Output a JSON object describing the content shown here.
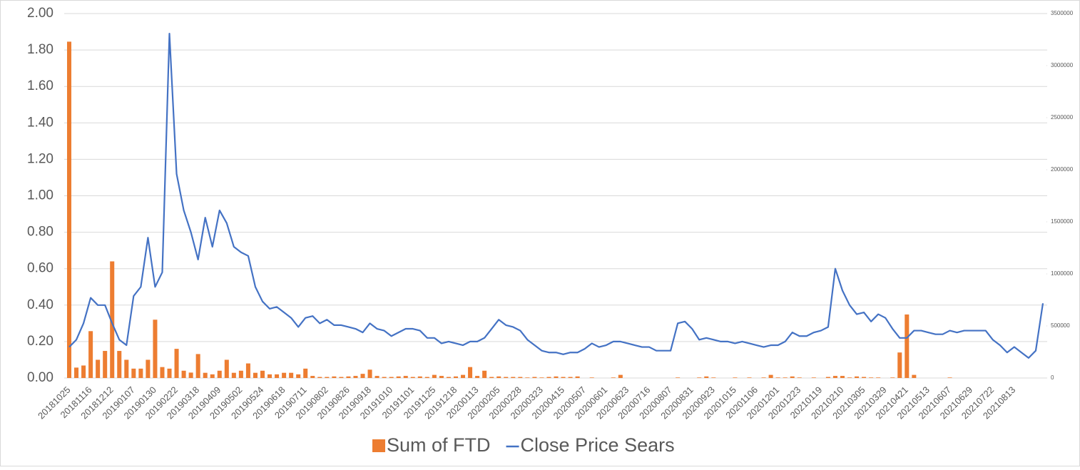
{
  "chart_data": {
    "type": "combo",
    "categories": [
      "20181025",
      null,
      null,
      "20181116",
      null,
      null,
      "20181212",
      null,
      null,
      "20190107",
      null,
      null,
      "20190130",
      null,
      null,
      "20190222",
      null,
      null,
      "20190318",
      null,
      null,
      "20190409",
      null,
      null,
      "20190502",
      null,
      null,
      "20190524",
      null,
      null,
      "20190618",
      null,
      null,
      "20190711",
      null,
      null,
      "20190802",
      null,
      null,
      "20190826",
      null,
      null,
      "20190918",
      null,
      null,
      "20191010",
      null,
      null,
      "20191101",
      null,
      null,
      "20191125",
      null,
      null,
      "20191218",
      null,
      null,
      "20200113",
      null,
      null,
      "20200205",
      null,
      null,
      "20200228",
      null,
      null,
      "20200323",
      null,
      null,
      "20200415",
      null,
      null,
      "20200507",
      null,
      null,
      "20200601",
      null,
      null,
      "20200623",
      null,
      null,
      "20200716",
      null,
      null,
      "20200807",
      null,
      null,
      "20200831",
      null,
      null,
      "20200923",
      null,
      null,
      "20201015",
      null,
      null,
      "20201106",
      null,
      null,
      "20201201",
      null,
      null,
      "20201223",
      null,
      null,
      "20210119",
      null,
      null,
      "20210210",
      null,
      null,
      "20210305",
      null,
      null,
      "20210329",
      null,
      null,
      "20210421",
      null,
      null,
      "20210513",
      null,
      null,
      "20210607",
      null,
      null,
      "20210629",
      null,
      null,
      "20210722",
      null,
      null,
      "20210813",
      null,
      null,
      null,
      null
    ],
    "series": [
      {
        "name": "Sum of FTD",
        "type": "bar",
        "axis": "y2",
        "color": "#ed7d31",
        "values": [
          3230000,
          100000,
          120000,
          450000,
          175000,
          260000,
          1120000,
          260000,
          175000,
          90000,
          90000,
          175000,
          560000,
          105000,
          90000,
          280000,
          70000,
          52000,
          230000,
          50000,
          35000,
          70000,
          175000,
          50000,
          70000,
          140000,
          50000,
          70000,
          35000,
          35000,
          50000,
          50000,
          35000,
          90000,
          20000,
          10000,
          10000,
          15000,
          10000,
          15000,
          20000,
          40000,
          80000,
          20000,
          10000,
          10000,
          15000,
          20000,
          10000,
          15000,
          10000,
          30000,
          20000,
          10000,
          15000,
          30000,
          105000,
          20000,
          70000,
          10000,
          15000,
          10000,
          10000,
          10000,
          5000,
          10000,
          5000,
          10000,
          15000,
          10000,
          10000,
          15000,
          0,
          5000,
          0,
          0,
          5000,
          30000,
          0,
          0,
          0,
          0,
          0,
          0,
          0,
          5000,
          0,
          0,
          5000,
          15000,
          5000,
          0,
          0,
          5000,
          0,
          5000,
          0,
          5000,
          30000,
          5000,
          5000,
          15000,
          5000,
          0,
          5000,
          0,
          10000,
          20000,
          20000,
          5000,
          15000,
          10000,
          5000,
          5000,
          0,
          5000,
          245000,
          610000,
          30000,
          0,
          0,
          0,
          0,
          5000,
          0,
          0,
          0,
          0,
          0,
          0,
          0,
          0,
          0,
          0,
          0,
          0,
          0
        ]
      },
      {
        "name": "Close Price Sears",
        "type": "line",
        "color": "#4472c4",
        "values": [
          0.17,
          0.21,
          0.3,
          0.44,
          0.4,
          0.4,
          0.3,
          0.21,
          0.18,
          0.45,
          0.5,
          0.77,
          0.5,
          0.58,
          1.89,
          1.12,
          0.92,
          0.8,
          0.65,
          0.88,
          0.72,
          0.92,
          0.85,
          0.72,
          0.69,
          0.67,
          0.5,
          0.42,
          0.38,
          0.39,
          0.36,
          0.33,
          0.28,
          0.33,
          0.34,
          0.3,
          0.32,
          0.29,
          0.29,
          0.28,
          0.27,
          0.25,
          0.3,
          0.27,
          0.26,
          0.23,
          0.25,
          0.27,
          0.27,
          0.26,
          0.22,
          0.22,
          0.19,
          0.2,
          0.19,
          0.18,
          0.2,
          0.2,
          0.22,
          0.27,
          0.32,
          0.29,
          0.28,
          0.26,
          0.21,
          0.18,
          0.15,
          0.14,
          0.14,
          0.13,
          0.14,
          0.14,
          0.16,
          0.19,
          0.17,
          0.18,
          0.2,
          0.2,
          0.19,
          0.18,
          0.17,
          0.17,
          0.15,
          0.15,
          0.15,
          0.3,
          0.31,
          0.27,
          0.21,
          0.22,
          0.21,
          0.2,
          0.2,
          0.19,
          0.2,
          0.19,
          0.18,
          0.17,
          0.18,
          0.18,
          0.2,
          0.25,
          0.23,
          0.23,
          0.25,
          0.26,
          0.28,
          0.6,
          0.48,
          0.4,
          0.35,
          0.36,
          0.31,
          0.35,
          0.33,
          0.27,
          0.22,
          0.22,
          0.26,
          0.26,
          0.25,
          0.24,
          0.24,
          0.26,
          0.25,
          0.26,
          0.26,
          0.26,
          0.26,
          0.21,
          0.18,
          0.14,
          0.17,
          0.14,
          0.11,
          0.15,
          0.41
        ]
      }
    ],
    "ylim": [
      0,
      2
    ],
    "yticks": [
      {
        "value": 0,
        "label": "0.00"
      },
      {
        "value": 0.2,
        "label": "0.20"
      },
      {
        "value": 0.4,
        "label": "0.40"
      },
      {
        "value": 0.6,
        "label": "0.60"
      },
      {
        "value": 0.8,
        "label": "0.80"
      },
      {
        "value": 1,
        "label": "1.00"
      },
      {
        "value": 1.2,
        "label": "1.20"
      },
      {
        "value": 1.4,
        "label": "1.40"
      },
      {
        "value": 1.6,
        "label": "1.60"
      },
      {
        "value": 1.8,
        "label": "1.80"
      },
      {
        "value": 2,
        "label": "2.00"
      }
    ],
    "y2lim": [
      0,
      3500000
    ],
    "y2ticks": [
      0,
      500000,
      1000000,
      1500000,
      2000000,
      2500000,
      3000000,
      3500000
    ],
    "grid": true,
    "legend": "bottom"
  }
}
